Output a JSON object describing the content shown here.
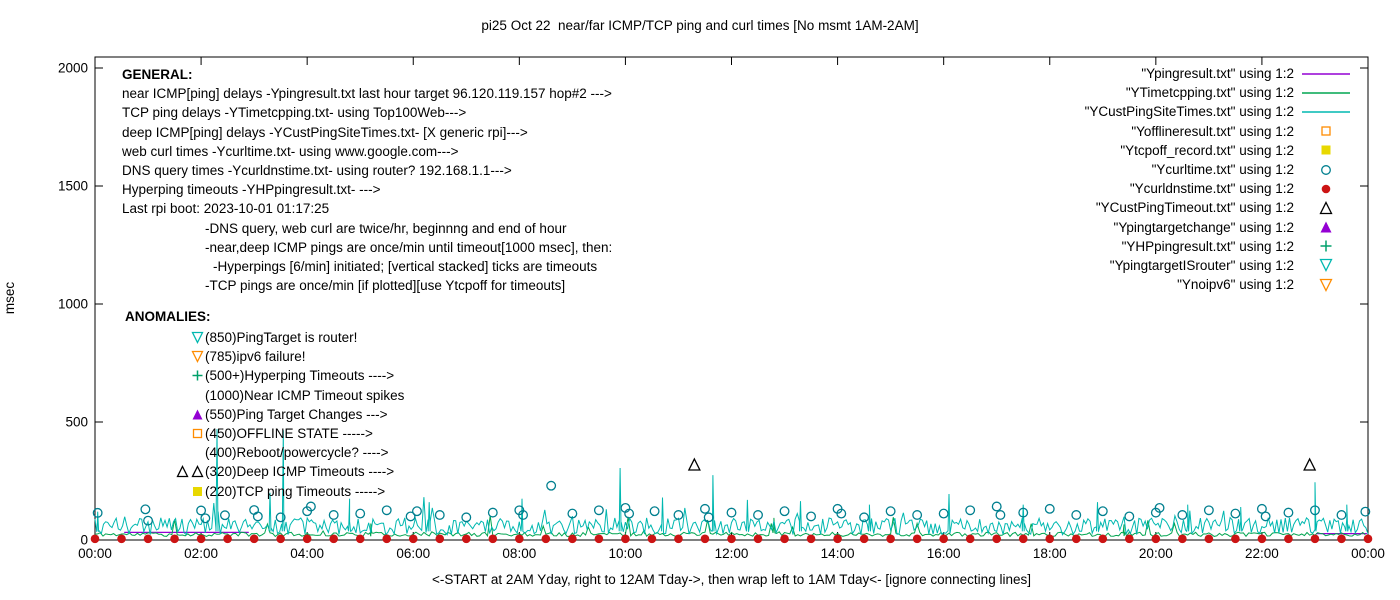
{
  "title": "pi25 Oct 22  near/far ICMP/TCP ping and curl times [No msmt 1AM-2AM]",
  "x_axis_label": "<-START at 2AM Yday, right to 12AM Tday->, then wrap left to 1AM Tday<- [ignore connecting lines]",
  "y_axis_label": "msec",
  "general": {
    "heading": "GENERAL:",
    "lines": [
      {
        "indent": 0,
        "text": "near ICMP[ping] delays -Ypingresult.txt last hour target 96.120.119.157 hop#2 --->"
      },
      {
        "indent": 0,
        "text": "TCP ping delays -YTimetcpping.txt- using Top100Web--->"
      },
      {
        "indent": 0,
        "text": "deep ICMP[ping] delays -YCustPingSiteTimes.txt- [X generic rpi]--->"
      },
      {
        "indent": 0,
        "text": "web curl times -Ycurltime.txt- using www.google.com--->"
      },
      {
        "indent": 0,
        "text": "DNS query times -Ycurldnstime.txt- using router? 192.168.1.1--->"
      },
      {
        "indent": 0,
        "text": "Hyperping timeouts -YHPpingresult.txt- --->"
      },
      {
        "indent": 0,
        "text": "Last rpi boot: 2023-10-01 01:17:25"
      },
      {
        "indent": 1,
        "text": "-DNS query, web curl are twice/hr, beginnng and end of hour"
      },
      {
        "indent": 1,
        "text": "-near,deep ICMP pings are once/min until timeout[1000 msec], then:"
      },
      {
        "indent": 2,
        "text": "-Hyperpings [6/min] initiated; [vertical stacked] ticks are timeouts"
      },
      {
        "indent": 1,
        "text": "-TCP pings are once/min [if plotted][use Ytcpoff for timeouts]"
      }
    ]
  },
  "anomalies": {
    "heading": "ANOMALIES:",
    "rows": [
      {
        "icons": [
          {
            "marker": "triangle-down-open",
            "color": "#00b8b0"
          }
        ],
        "text": "(850)PingTarget is router!"
      },
      {
        "icons": [
          {
            "marker": "triangle-down-open",
            "color": "#ff8c00"
          }
        ],
        "text": "(785)ipv6 failure!"
      },
      {
        "icons": [
          {
            "marker": "plus",
            "color": "#00a06a"
          }
        ],
        "text": "(500+)Hyperping Timeouts ---->"
      },
      {
        "icons": [],
        "text": "(1000)Near ICMP Timeout spikes"
      },
      {
        "icons": [
          {
            "marker": "triangle-filled",
            "color": "#9400d3"
          }
        ],
        "text": "(550)Ping Target Changes --->"
      },
      {
        "icons": [
          {
            "marker": "square-open",
            "color": "#ff8c00"
          }
        ],
        "text": "(450)OFFLINE STATE ----->"
      },
      {
        "icons": [],
        "text": "(400)Reboot/powercycle? ---->"
      },
      {
        "icons": [
          {
            "marker": "triangle-open",
            "color": "#000000"
          },
          {
            "marker": "triangle-open",
            "color": "#000000"
          }
        ],
        "text": "(320)Deep ICMP Timeouts ---->"
      },
      {
        "icons": [
          {
            "marker": "square-filled",
            "color": "#e8d800"
          }
        ],
        "text": "(220)TCP ping Timeouts ----->"
      }
    ]
  },
  "chart_data": {
    "type": "line",
    "title": "pi25 Oct 22  near/far ICMP/TCP ping and curl times [No msmt 1AM-2AM]",
    "xlabel": "<-START at 2AM Yday, right to 12AM Tday->, then wrap left to 1AM Tday<- [ignore connecting lines]",
    "ylabel": "msec",
    "x_axis": {
      "min": 0,
      "max": 24,
      "tick_values": [
        0,
        2,
        4,
        6,
        8,
        10,
        12,
        14,
        16,
        18,
        20,
        22,
        24
      ],
      "tick_labels": [
        "00:00",
        "02:00",
        "04:00",
        "06:00",
        "08:00",
        "10:00",
        "12:00",
        "14:00",
        "16:00",
        "18:00",
        "20:00",
        "22:00",
        "00:00"
      ]
    },
    "y_axis": {
      "min": 0,
      "max": 2046,
      "tick_values": [
        0,
        500,
        1000,
        1500,
        2000
      ],
      "tick_labels": [
        "0",
        "500",
        "1000",
        "1500",
        "2000"
      ]
    },
    "legend_position": "top-right",
    "series": [
      {
        "name": "\"Ypingresult.txt\" using 1:2",
        "type": "segments",
        "color": "#9400d3",
        "segments": [
          [
            [
              0.55,
              32
            ],
            [
              2.9,
              32
            ]
          ],
          [
            [
              23.02,
              27
            ],
            [
              23.98,
              27
            ]
          ]
        ]
      },
      {
        "name": "\"YTimetcpping.txt\" using 1:2",
        "type": "noise-line",
        "color": "#00a550",
        "noise": {
          "seed": 11,
          "from": 0,
          "to": 24,
          "step": 0.05,
          "base": 15,
          "amp": 18
        },
        "spikes": [
          [
            5.2,
            70
          ],
          [
            12.8,
            62
          ],
          [
            19.4,
            66
          ]
        ]
      },
      {
        "name": "\"YCustPingSiteTimes.txt\" using 1:2",
        "type": "noise-line",
        "color": "#00b8b0",
        "noise": {
          "seed": 4,
          "from": 0,
          "to": 24,
          "step": 0.04,
          "base": 22,
          "amp": 72
        },
        "spikes": [
          [
            0.05,
            120
          ],
          [
            2.3,
            470
          ],
          [
            3.3,
            200
          ],
          [
            3.55,
            465
          ],
          [
            4.8,
            175
          ],
          [
            6.3,
            160
          ],
          [
            8.05,
            175
          ],
          [
            9.9,
            305
          ],
          [
            10.7,
            180
          ],
          [
            11.65,
            275
          ],
          [
            12.3,
            170
          ],
          [
            13.3,
            165
          ],
          [
            14.6,
            150
          ],
          [
            16.1,
            195
          ],
          [
            17.5,
            150
          ],
          [
            18.9,
            160
          ],
          [
            20.6,
            150
          ],
          [
            21.6,
            140
          ],
          [
            23.0,
            245
          ],
          [
            23.6,
            150
          ]
        ]
      },
      {
        "name": "\"Yofflineresult.txt\" using 1:2",
        "type": "scatter",
        "marker": "square-open",
        "color": "#ff8c00",
        "data": []
      },
      {
        "name": "\"Ytcpoff_record.txt\" using 1:2",
        "type": "scatter",
        "marker": "square-filled",
        "color": "#e8d800",
        "data": []
      },
      {
        "name": "\"Ycurltime.txt\" using 1:2",
        "type": "scatter",
        "marker": "circle-open",
        "color": "#007f8f",
        "data": [
          [
            0.05,
            115
          ],
          [
            0.95,
            130
          ],
          [
            1.0,
            82
          ],
          [
            2.0,
            125
          ],
          [
            2.08,
            92
          ],
          [
            2.45,
            105
          ],
          [
            3.0,
            127
          ],
          [
            3.07,
            100
          ],
          [
            3.5,
            96
          ],
          [
            4.0,
            122
          ],
          [
            4.07,
            142
          ],
          [
            4.5,
            106
          ],
          [
            5.0,
            112
          ],
          [
            5.5,
            126
          ],
          [
            5.95,
            100
          ],
          [
            6.07,
            122
          ],
          [
            6.5,
            106
          ],
          [
            7.0,
            96
          ],
          [
            7.5,
            116
          ],
          [
            8.0,
            126
          ],
          [
            8.07,
            106
          ],
          [
            8.6,
            230
          ],
          [
            9.0,
            112
          ],
          [
            9.5,
            126
          ],
          [
            10.0,
            136
          ],
          [
            10.07,
            112
          ],
          [
            10.55,
            122
          ],
          [
            11.0,
            106
          ],
          [
            11.5,
            132
          ],
          [
            11.57,
            96
          ],
          [
            12.0,
            116
          ],
          [
            12.5,
            106
          ],
          [
            13.0,
            122
          ],
          [
            13.5,
            100
          ],
          [
            14.0,
            132
          ],
          [
            14.07,
            112
          ],
          [
            14.5,
            96
          ],
          [
            15.0,
            122
          ],
          [
            15.5,
            106
          ],
          [
            16.0,
            112
          ],
          [
            16.5,
            126
          ],
          [
            17.0,
            142
          ],
          [
            17.07,
            106
          ],
          [
            17.5,
            116
          ],
          [
            18.0,
            132
          ],
          [
            18.5,
            106
          ],
          [
            19.0,
            122
          ],
          [
            19.5,
            100
          ],
          [
            20.0,
            116
          ],
          [
            20.07,
            136
          ],
          [
            20.5,
            106
          ],
          [
            21.0,
            126
          ],
          [
            21.5,
            112
          ],
          [
            22.0,
            132
          ],
          [
            22.07,
            100
          ],
          [
            22.5,
            116
          ],
          [
            23.0,
            126
          ],
          [
            23.5,
            106
          ],
          [
            23.95,
            120
          ]
        ]
      },
      {
        "name": "\"Ycurldnstime.txt\" using 1:2",
        "type": "scatter",
        "marker": "circle-filled",
        "color": "#cc1414",
        "regular": {
          "from": 0,
          "to": 24,
          "step": 0.5,
          "y": 5
        }
      },
      {
        "name": "\"YCustPingTimeout.txt\" using 1:2",
        "type": "scatter",
        "marker": "triangle-open",
        "color": "#000000",
        "data": [
          [
            11.3,
            320
          ],
          [
            22.9,
            320
          ]
        ]
      },
      {
        "name": "\"Ypingtargetchange\" using 1:2",
        "type": "scatter",
        "marker": "triangle-filled",
        "color": "#9400d3",
        "data": []
      },
      {
        "name": "\"YHPpingresult.txt\" using 1:2",
        "type": "scatter",
        "marker": "plus",
        "color": "#00a06a",
        "data": []
      },
      {
        "name": "\"YpingtargetISrouter\" using 1:2",
        "type": "scatter",
        "marker": "triangle-down-open",
        "color": "#00b8b0",
        "data": []
      },
      {
        "name": "\"Ynoipv6\" using 1:2",
        "type": "scatter",
        "marker": "triangle-down-open",
        "color": "#ff8c00",
        "data": []
      }
    ]
  }
}
